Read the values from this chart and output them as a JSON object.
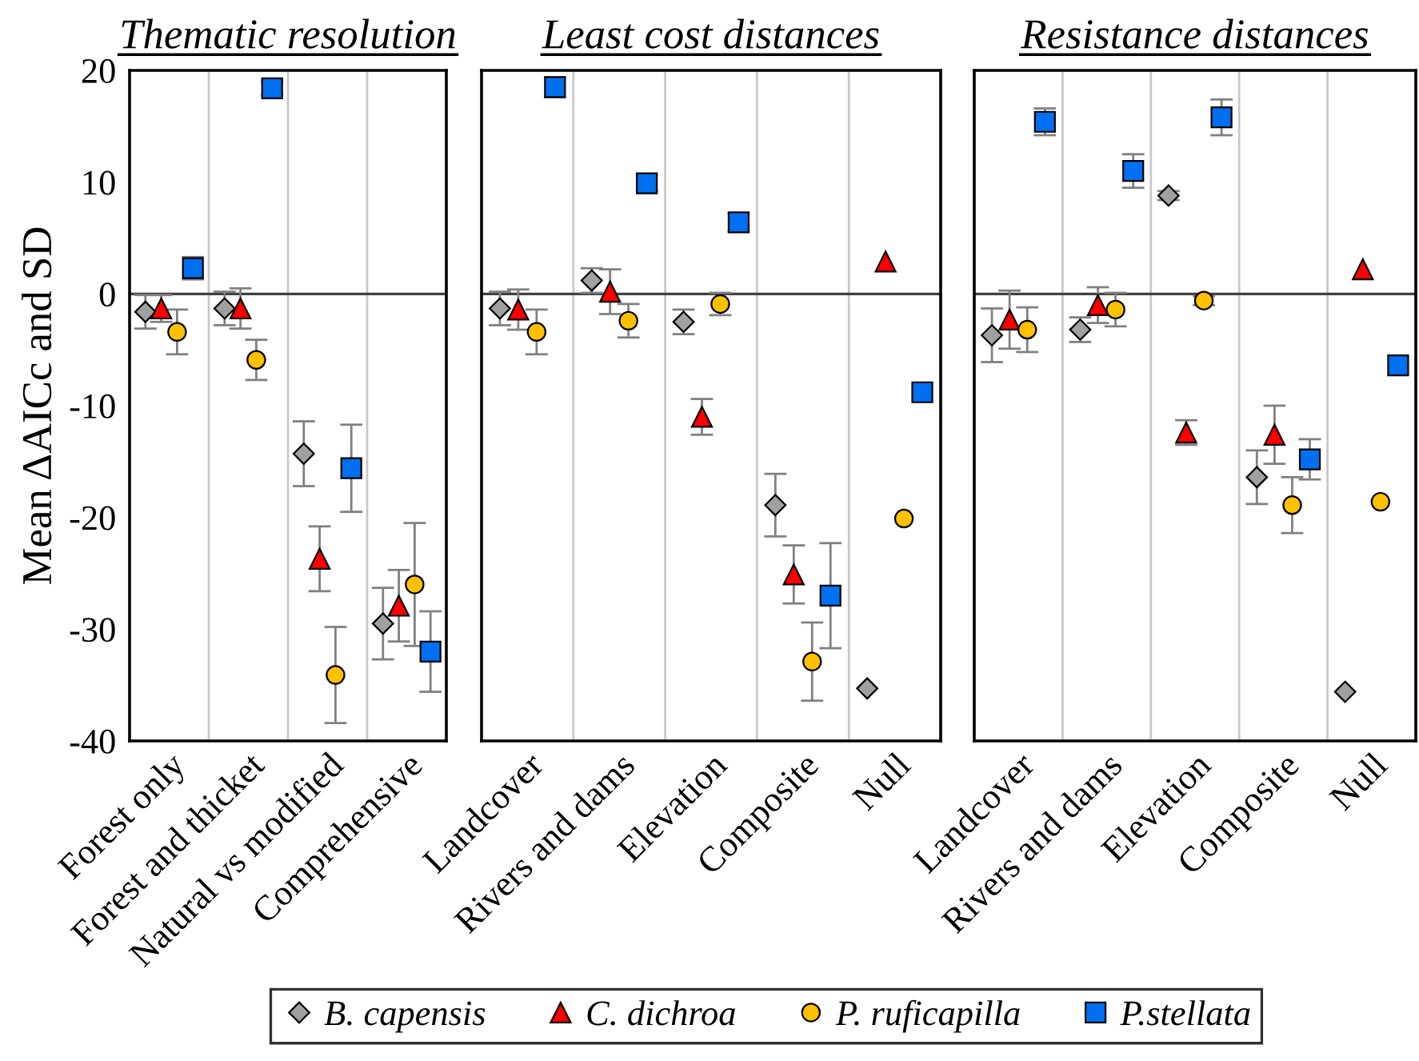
{
  "chart_data": [
    {
      "type": "scatter",
      "title": "Thematic resolution",
      "ylabel": "Mean ΔAICc and SD",
      "categories": [
        "Forest only",
        "Forest and thicket",
        "Natural vs modified",
        "Comprehensive"
      ],
      "ylim": [
        -40,
        20
      ],
      "yticks": [
        -40,
        -30,
        -20,
        -10,
        0,
        10,
        20
      ],
      "grid": "x",
      "legend": "bottom",
      "ref_lines": [
        {
          "axis": "y",
          "value": 0,
          "color": "#404040"
        }
      ],
      "series": [
        {
          "name": "B. capensis",
          "color": "#a0a0a0",
          "marker": "diamond",
          "values": [
            -1.6,
            -1.3,
            -14.3,
            -29.5
          ],
          "errors": [
            1.5,
            1.5,
            2.9,
            3.2
          ]
        },
        {
          "name": "C. dichroa",
          "color": "#ff0000",
          "marker": "triangle",
          "values": [
            -1.3,
            -1.3,
            -23.7,
            -27.9
          ],
          "errors": [
            1.2,
            1.8,
            2.9,
            3.2
          ]
        },
        {
          "name": "P. ruficapilla",
          "color": "#ffc000",
          "marker": "circle",
          "values": [
            -3.4,
            -5.9,
            -34.1,
            -26.0
          ],
          "errors": [
            2.0,
            1.8,
            4.3,
            5.5
          ]
        },
        {
          "name": "P.stellata",
          "color": "#0070f0",
          "marker": "square",
          "values": [
            2.3,
            18.4,
            -15.6,
            -32.0
          ],
          "errors": [
            1.0,
            0.6,
            3.9,
            3.6
          ]
        }
      ]
    },
    {
      "type": "scatter",
      "title": "Least cost distances",
      "categories": [
        "Landcover",
        "Rivers and dams",
        "Elevation",
        "Composite",
        "Null"
      ],
      "ylim": [
        -40,
        20
      ],
      "tick_labels": "x",
      "grid": "x",
      "ref_lines": [
        {
          "axis": "y",
          "value": 0,
          "color": "#404040"
        }
      ],
      "series": [
        {
          "color": "#a0a0a0",
          "marker": "diamond",
          "values": [
            -1.3,
            1.2,
            -2.5,
            -18.9,
            -35.3
          ],
          "errors": [
            1.5,
            1.1,
            1.1,
            2.8,
            null
          ]
        },
        {
          "color": "#ff0000",
          "marker": "triangle",
          "values": [
            -1.4,
            0.2,
            -11.0,
            -25.1,
            2.9
          ],
          "errors": [
            1.8,
            2.0,
            1.6,
            2.6,
            null
          ]
        },
        {
          "color": "#ffc000",
          "marker": "circle",
          "values": [
            -3.4,
            -2.4,
            -0.9,
            -32.9,
            -20.1
          ],
          "errors": [
            2.0,
            1.5,
            1.0,
            3.5,
            null
          ]
        },
        {
          "color": "#0070f0",
          "marker": "square",
          "values": [
            18.5,
            9.9,
            6.4,
            -27.0,
            -8.8
          ],
          "errors": [
            0.9,
            0.7,
            0.8,
            4.7,
            null
          ]
        }
      ]
    },
    {
      "type": "scatter",
      "title": "Resistance distances",
      "categories": [
        "Landcover",
        "Rivers and dams",
        "Elevation",
        "Composite",
        "Null"
      ],
      "ylim": [
        -40,
        20
      ],
      "tick_labels": "x",
      "grid": "x",
      "ref_lines": [
        {
          "axis": "y",
          "value": 0,
          "color": "#404040"
        }
      ],
      "series": [
        {
          "color": "#a0a0a0",
          "marker": "diamond",
          "values": [
            -3.7,
            -3.2,
            8.8,
            -16.4,
            -35.6
          ],
          "errors": [
            2.4,
            1.1,
            0.4,
            2.4,
            null
          ]
        },
        {
          "color": "#ff0000",
          "marker": "triangle",
          "values": [
            -2.3,
            -1.0,
            -12.4,
            -12.6,
            2.2
          ],
          "errors": [
            2.6,
            1.6,
            1.1,
            2.6,
            null
          ]
        },
        {
          "color": "#ffc000",
          "marker": "circle",
          "values": [
            -3.2,
            -1.4,
            -0.6,
            -18.9,
            -18.6
          ],
          "errors": [
            2.0,
            1.5,
            0.4,
            2.5,
            null
          ]
        },
        {
          "color": "#0070f0",
          "marker": "square",
          "values": [
            15.4,
            11.0,
            15.8,
            -14.8,
            -6.4
          ],
          "errors": [
            1.2,
            1.5,
            1.6,
            1.8,
            null
          ]
        }
      ]
    }
  ]
}
